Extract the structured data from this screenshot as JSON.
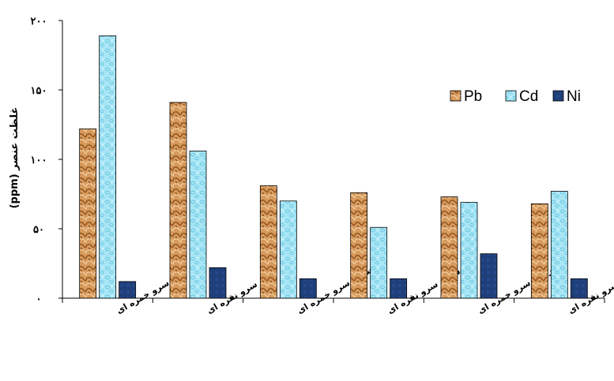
{
  "chart_data": {
    "type": "bar",
    "ylabel": "(ppm) غلظت عنصر",
    "ylim": [
      0,
      200
    ],
    "yticks": [
      {
        "value": 0,
        "label": "۰"
      },
      {
        "value": 50,
        "label": "۵۰"
      },
      {
        "value": 100,
        "label": "۱۰۰"
      },
      {
        "value": 150,
        "label": "۱۵۰"
      },
      {
        "value": 200,
        "label": "۲۰۰"
      }
    ],
    "categories": [
      "برگ سرو خمره ای",
      "برگ سرو نقره ای",
      "ساقه سرو خمره ای",
      "ساقه سرو نقره ای",
      "ریشه سرو خمره ای",
      "ریشه سرو نقره ای"
    ],
    "series": [
      {
        "name": "Pb",
        "values": [
          122,
          141,
          81,
          76,
          73,
          68
        ]
      },
      {
        "name": "Cd",
        "values": [
          189,
          106,
          70,
          51,
          69,
          77
        ]
      },
      {
        "name": "Ni",
        "values": [
          12,
          22,
          14,
          14,
          32,
          14
        ]
      }
    ],
    "legend_position": "top-right",
    "grid": false,
    "colors": {
      "Pb": "#c8894a",
      "Cd": "#9fe0f2",
      "Ni": "#1f3f7a"
    }
  }
}
